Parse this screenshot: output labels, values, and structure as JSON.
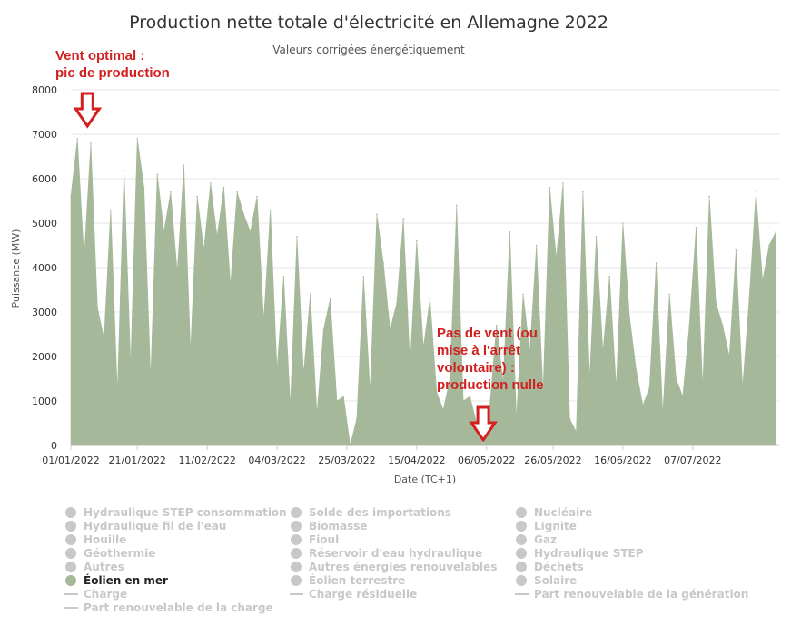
{
  "chart_data": {
    "type": "area",
    "title": "Production nette totale d'électricité en Allemagne 2022",
    "subtitle": "Valeurs corrigées énergétiquement",
    "xlabel": "Date (TC+1)",
    "ylabel": "Puissance (MW)",
    "ylim": [
      0,
      8000
    ],
    "yticks": [
      "0",
      "1000",
      "2000",
      "3000",
      "4000",
      "5000",
      "6000",
      "7000",
      "8000"
    ],
    "xlim": [
      "01/01/2022",
      "02/08/2022"
    ],
    "xticks": [
      "01/01/2022",
      "21/01/2022",
      "11/02/2022",
      "04/03/2022",
      "25/03/2022",
      "15/04/2022",
      "06/05/2022",
      "26/05/2022",
      "16/06/2022",
      "07/07/2022"
    ],
    "grid": true,
    "series": [
      {
        "name": "Éolien en mer",
        "color": "#a5b89a",
        "x": [
          "01/01/2022",
          "03/01/2022",
          "05/01/2022",
          "07/01/2022",
          "09/01/2022",
          "11/01/2022",
          "13/01/2022",
          "15/01/2022",
          "17/01/2022",
          "19/01/2022",
          "21/01/2022",
          "23/01/2022",
          "25/01/2022",
          "27/01/2022",
          "29/01/2022",
          "31/01/2022",
          "02/02/2022",
          "04/02/2022",
          "06/02/2022",
          "08/02/2022",
          "10/02/2022",
          "12/02/2022",
          "14/02/2022",
          "16/02/2022",
          "18/02/2022",
          "20/02/2022",
          "22/02/2022",
          "24/02/2022",
          "26/02/2022",
          "28/02/2022",
          "02/03/2022",
          "04/03/2022",
          "06/03/2022",
          "08/03/2022",
          "10/03/2022",
          "12/03/2022",
          "14/03/2022",
          "16/03/2022",
          "18/03/2022",
          "20/03/2022",
          "22/03/2022",
          "24/03/2022",
          "26/03/2022",
          "28/03/2022",
          "30/03/2022",
          "01/04/2022",
          "03/04/2022",
          "05/04/2022",
          "07/04/2022",
          "09/04/2022",
          "11/04/2022",
          "13/04/2022",
          "15/04/2022",
          "17/04/2022",
          "19/04/2022",
          "21/04/2022",
          "23/04/2022",
          "25/04/2022",
          "27/04/2022",
          "29/04/2022",
          "01/05/2022",
          "03/05/2022",
          "05/05/2022",
          "07/05/2022",
          "09/05/2022",
          "11/05/2022",
          "13/05/2022",
          "15/05/2022",
          "17/05/2022",
          "19/05/2022",
          "21/05/2022",
          "23/05/2022",
          "25/05/2022",
          "27/05/2022",
          "29/05/2022",
          "31/05/2022",
          "02/06/2022",
          "04/06/2022",
          "06/06/2022",
          "08/06/2022",
          "10/06/2022",
          "12/06/2022",
          "14/06/2022",
          "16/06/2022",
          "18/06/2022",
          "20/06/2022",
          "22/06/2022",
          "24/06/2022",
          "26/06/2022",
          "28/06/2022",
          "30/06/2022",
          "02/07/2022",
          "04/07/2022",
          "06/07/2022",
          "08/07/2022",
          "10/07/2022",
          "12/07/2022",
          "14/07/2022",
          "16/07/2022",
          "18/07/2022",
          "20/07/2022",
          "22/07/2022",
          "24/07/2022",
          "26/07/2022",
          "28/07/2022",
          "30/07/2022",
          "01/08/2022"
        ],
        "values": [
          5600,
          6900,
          4200,
          6800,
          3100,
          2400,
          5300,
          1200,
          6200,
          1800,
          6900,
          5800,
          1500,
          6100,
          4800,
          5700,
          3900,
          6300,
          2100,
          5600,
          4400,
          5900,
          4700,
          5800,
          3600,
          5700,
          5200,
          4800,
          5600,
          2800,
          5300,
          1700,
          3800,
          900,
          4700,
          1600,
          3400,
          700,
          2600,
          3300,
          1000,
          1100,
          0,
          600,
          3800,
          1200,
          5200,
          4100,
          2600,
          3200,
          5100,
          1800,
          4600,
          2200,
          3300,
          1200,
          800,
          1500,
          5400,
          1000,
          1100,
          500,
          0,
          900,
          2700,
          1400,
          4800,
          600,
          3400,
          2100,
          4500,
          1200,
          5800,
          4200,
          5900,
          600,
          300,
          5700,
          1500,
          4700,
          2100,
          3800,
          1300,
          5000,
          2900,
          1700,
          900,
          1300,
          4100,
          700,
          3400,
          1500,
          1100,
          2700,
          4900,
          1300,
          5600,
          3200,
          2700,
          2000,
          4400,
          1300,
          3300,
          5700,
          3700,
          4500,
          4800
        ]
      }
    ],
    "annotations": [
      {
        "lines": [
          "Vent optimal :",
          "pic de production"
        ],
        "arrow_date": "06/01/2022"
      },
      {
        "lines": [
          "Pas de vent (ou",
          "mise à l'arrêt",
          "volontaire) :",
          "production nulle"
        ],
        "arrow_date": "05/05/2022"
      }
    ],
    "legend_placement": "bottom",
    "legend": {
      "columns": [
        [
          {
            "label": "Hydraulique STEP consommation",
            "kind": "dot",
            "active": false
          },
          {
            "label": "Hydraulique fil de l'eau",
            "kind": "dot",
            "active": false
          },
          {
            "label": "Houille",
            "kind": "dot",
            "active": false
          },
          {
            "label": "Géothermie",
            "kind": "dot",
            "active": false
          },
          {
            "label": "Autres",
            "kind": "dot",
            "active": false
          },
          {
            "label": "Éolien en mer",
            "kind": "dot",
            "active": true
          },
          {
            "label": "Charge",
            "kind": "line",
            "active": false
          },
          {
            "label": "Part renouvelable de la charge",
            "kind": "line",
            "active": false
          }
        ],
        [
          {
            "label": "Solde des importations",
            "kind": "dot",
            "active": false
          },
          {
            "label": "Biomasse",
            "kind": "dot",
            "active": false
          },
          {
            "label": "Fioul",
            "kind": "dot",
            "active": false
          },
          {
            "label": "Réservoir d'eau hydraulique",
            "kind": "dot",
            "active": false
          },
          {
            "label": "Autres énergies renouvelables",
            "kind": "dot",
            "active": false
          },
          {
            "label": "Éolien terrestre",
            "kind": "dot",
            "active": false
          },
          {
            "label": "Charge résiduelle",
            "kind": "line",
            "active": false
          }
        ],
        [
          {
            "label": "Nucléaire",
            "kind": "dot",
            "active": false
          },
          {
            "label": "Lignite",
            "kind": "dot",
            "active": false
          },
          {
            "label": "Gaz",
            "kind": "dot",
            "active": false
          },
          {
            "label": "Hydraulique STEP",
            "kind": "dot",
            "active": false
          },
          {
            "label": "Déchets",
            "kind": "dot",
            "active": false
          },
          {
            "label": "Solaire",
            "kind": "dot",
            "active": false
          },
          {
            "label": "Part renouvelable de la génération",
            "kind": "line",
            "active": false
          }
        ]
      ]
    },
    "colors": {
      "annotation": "#d21f1f",
      "inactive": "#c8c8c8",
      "grid": "#e6e6e6",
      "axis": "#cccccc"
    }
  }
}
